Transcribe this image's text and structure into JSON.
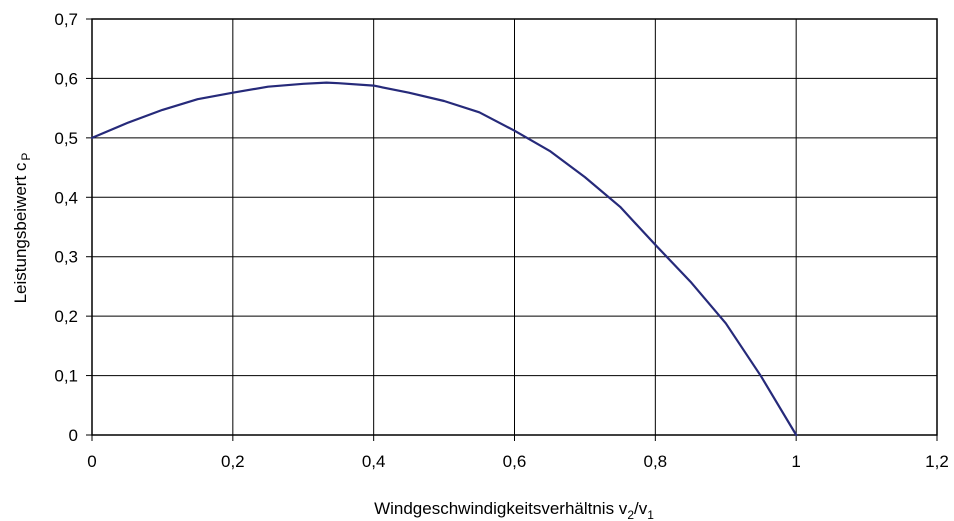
{
  "chart_data": {
    "type": "line",
    "title": "",
    "xlabel": {
      "base": "Windgeschwindigkeitsverhältnis v",
      "sub1": "2",
      "mid": "/v",
      "sub2": "1"
    },
    "ylabel": {
      "base": "Leistungsbeiwert c",
      "sub": "P"
    },
    "xlim": [
      0,
      1.2
    ],
    "ylim": [
      0,
      0.7
    ],
    "x_ticks": [
      0,
      0.2,
      0.4,
      0.6,
      0.8,
      1.0,
      1.2
    ],
    "x_tick_labels": [
      "0",
      "0,2",
      "0,4",
      "0,6",
      "0,8",
      "1",
      "1,2"
    ],
    "y_ticks": [
      0,
      0.1,
      0.2,
      0.3,
      0.4,
      0.5,
      0.6,
      0.7
    ],
    "y_tick_labels": [
      "0",
      "0,1",
      "0,2",
      "0,3",
      "0,4",
      "0,5",
      "0,6",
      "0,7"
    ],
    "grid": true,
    "legend": "none",
    "series": [
      {
        "color": "#262a7a",
        "x": [
          0,
          0.05,
          0.1,
          0.15,
          0.2,
          0.25,
          0.3,
          0.333,
          0.35,
          0.4,
          0.45,
          0.5,
          0.55,
          0.6,
          0.65,
          0.7,
          0.75,
          0.8,
          0.85,
          0.9,
          0.95,
          1.0
        ],
        "y": [
          0.5,
          0.525,
          0.547,
          0.565,
          0.576,
          0.586,
          0.591,
          0.593,
          0.592,
          0.588,
          0.576,
          0.562,
          0.543,
          0.512,
          0.478,
          0.434,
          0.384,
          0.32,
          0.258,
          0.188,
          0.099,
          0.0
        ]
      }
    ]
  }
}
